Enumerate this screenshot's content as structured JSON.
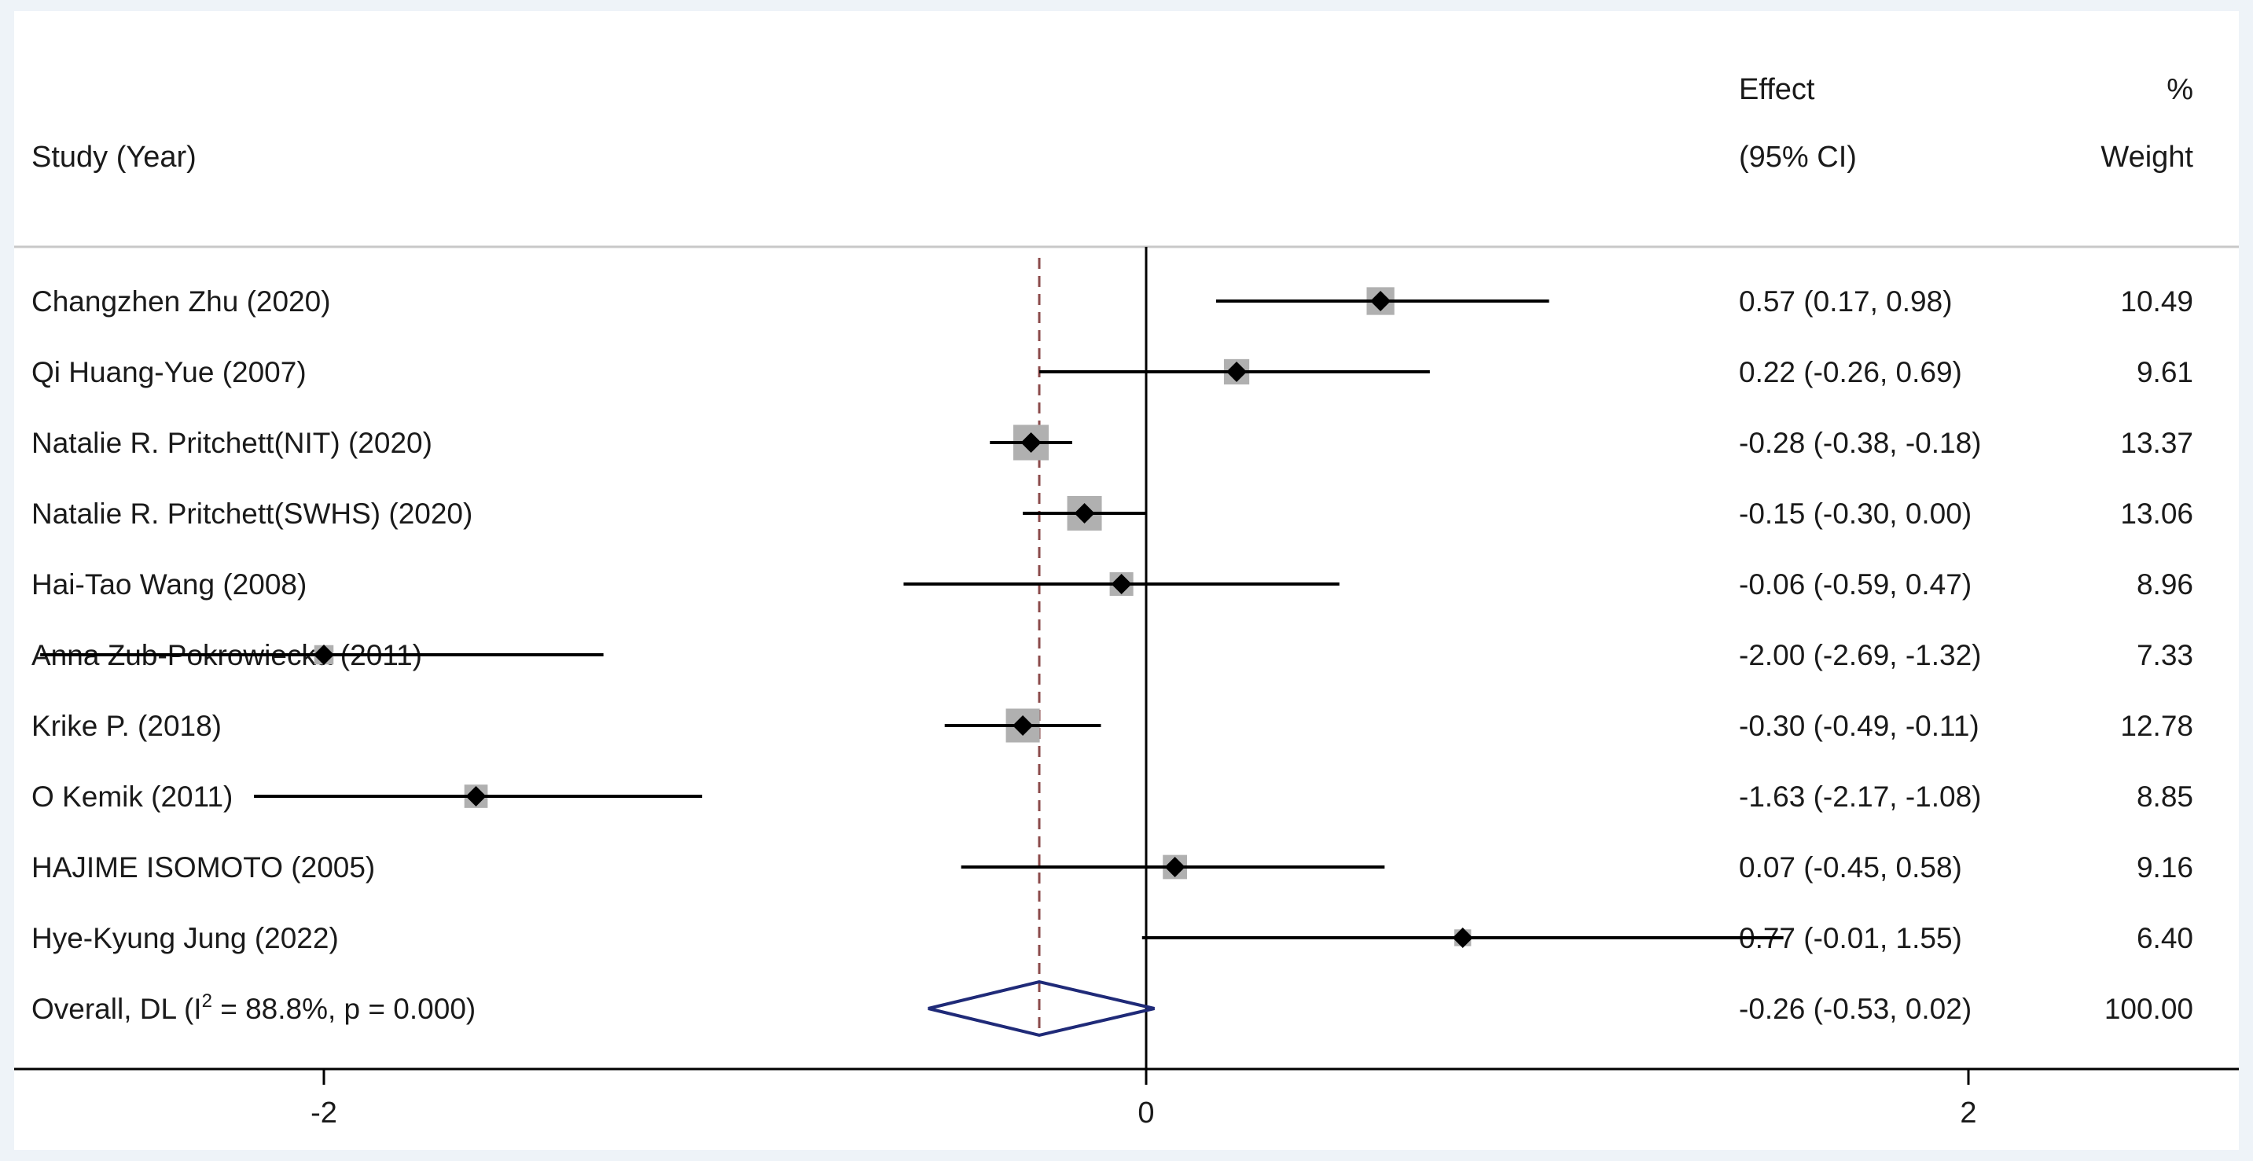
{
  "header": {
    "study_label": "Study (Year)",
    "effect_line1": "Effect",
    "effect_line2": "(95% CI)",
    "weight_line1": "%",
    "weight_line2": "Weight"
  },
  "colors": {
    "frame_bg": "#eef3f8",
    "plot_bg": "#ffffff",
    "marker": "#000000",
    "weight_box": "#b0b0b0",
    "ci_line": "#000000",
    "null_line": "#000000",
    "overall_line": "#8b4a4a",
    "overall_diamond": "#1f2a78"
  },
  "chart_data": {
    "type": "forest",
    "x_axis": {
      "ticks": [
        -2,
        0,
        2
      ],
      "tick_labels": [
        "-2",
        "0",
        "2"
      ],
      "range": [
        -2.7,
        1.6
      ]
    },
    "null_value": 0,
    "studies": [
      {
        "label": "Changzhen Zhu (2020)",
        "effect": 0.57,
        "ci_low": 0.17,
        "ci_high": 0.98,
        "effect_text": "0.57 (0.17, 0.98)",
        "weight": 10.49,
        "weight_text": "10.49"
      },
      {
        "label": "Qi Huang-Yue (2007)",
        "effect": 0.22,
        "ci_low": -0.26,
        "ci_high": 0.69,
        "effect_text": "0.22 (-0.26, 0.69)",
        "weight": 9.61,
        "weight_text": "9.61"
      },
      {
        "label": "Natalie R. Pritchett(NIT) (2020)",
        "effect": -0.28,
        "ci_low": -0.38,
        "ci_high": -0.18,
        "effect_text": "-0.28 (-0.38, -0.18)",
        "weight": 13.37,
        "weight_text": "13.37"
      },
      {
        "label": "Natalie R. Pritchett(SWHS) (2020)",
        "effect": -0.15,
        "ci_low": -0.3,
        "ci_high": 0.0,
        "effect_text": "-0.15 (-0.30, 0.00)",
        "weight": 13.06,
        "weight_text": "13.06"
      },
      {
        "label": "Hai-Tao Wang (2008)",
        "effect": -0.06,
        "ci_low": -0.59,
        "ci_high": 0.47,
        "effect_text": "-0.06 (-0.59, 0.47)",
        "weight": 8.96,
        "weight_text": "8.96"
      },
      {
        "label": "Anna Zub-Pokrowiecka (2011)",
        "effect": -2.0,
        "ci_low": -2.69,
        "ci_high": -1.32,
        "effect_text": "-2.00 (-2.69, -1.32)",
        "weight": 7.33,
        "weight_text": "7.33"
      },
      {
        "label": "Krike P. (2018)",
        "effect": -0.3,
        "ci_low": -0.49,
        "ci_high": -0.11,
        "effect_text": "-0.30 (-0.49, -0.11)",
        "weight": 12.78,
        "weight_text": "12.78"
      },
      {
        "label": "O Kemik (2011)",
        "effect": -1.63,
        "ci_low": -2.17,
        "ci_high": -1.08,
        "effect_text": "-1.63 (-2.17, -1.08)",
        "weight": 8.85,
        "weight_text": "8.85"
      },
      {
        "label": "HAJIME ISOMOTO (2005)",
        "effect": 0.07,
        "ci_low": -0.45,
        "ci_high": 0.58,
        "effect_text": "0.07 (-0.45, 0.58)",
        "weight": 9.16,
        "weight_text": "9.16"
      },
      {
        "label": "Hye-Kyung Jung (2022)",
        "effect": 0.77,
        "ci_low": -0.01,
        "ci_high": 1.55,
        "effect_text": "0.77 (-0.01, 1.55)",
        "weight": 6.4,
        "weight_text": "6.40"
      }
    ],
    "overall": {
      "label_prefix": "Overall, DL (I",
      "label_sup": "2",
      "label_suffix": " = 88.8%, p = 0.000)",
      "effect": -0.26,
      "ci_low": -0.53,
      "ci_high": 0.02,
      "effect_text": "-0.26 (-0.53, 0.02)",
      "weight": 100.0,
      "weight_text": "100.00"
    }
  }
}
